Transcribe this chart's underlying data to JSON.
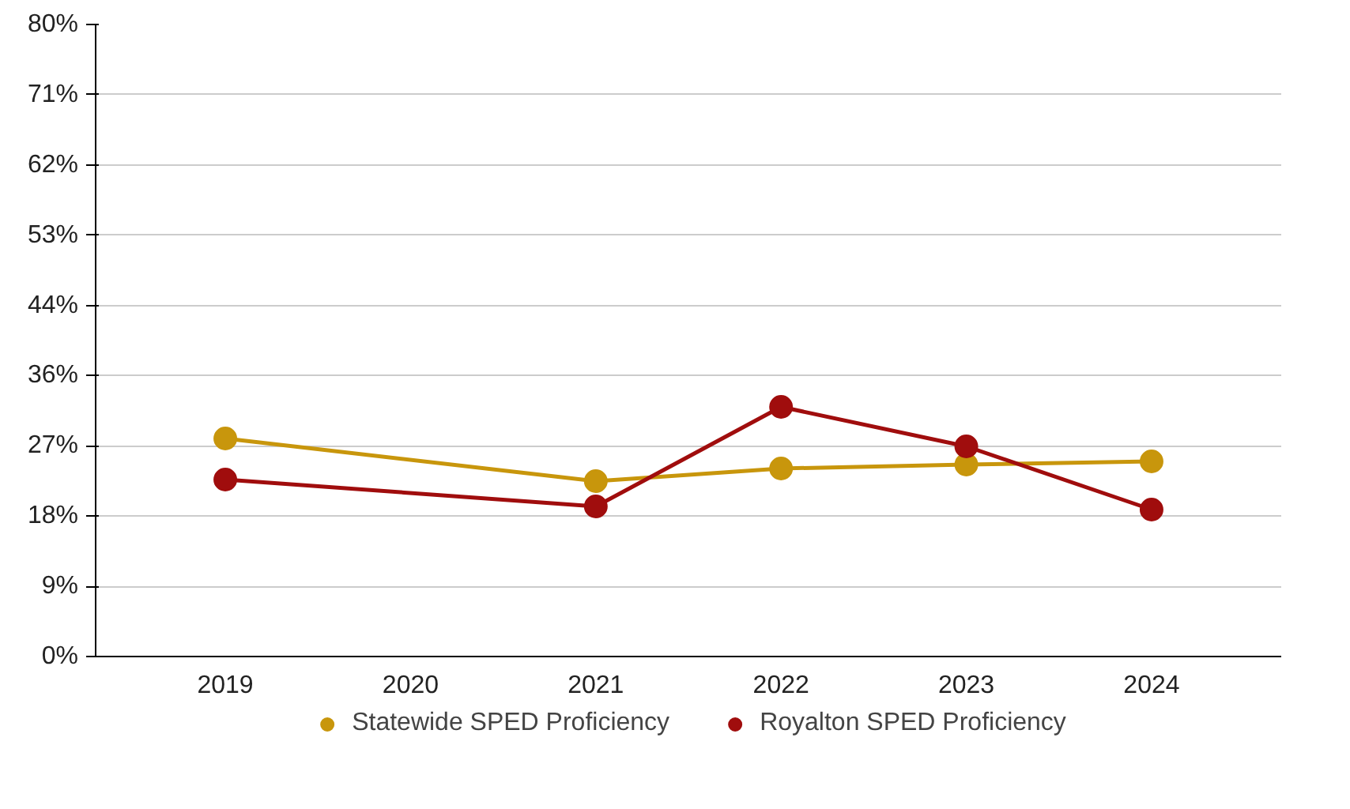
{
  "chart_data": {
    "type": "line",
    "categories": [
      "2019",
      "2020",
      "2021",
      "2022",
      "2023",
      "2024"
    ],
    "series": [
      {
        "name": "Statewide SPED Proficiency",
        "color": "#c8960c",
        "values": [
          27.6,
          null,
          22.2,
          23.8,
          24.3,
          24.7
        ]
      },
      {
        "name": "Royalton SPED Proficiency",
        "color": "#a00d0d",
        "values": [
          22.4,
          null,
          19.0,
          31.6,
          26.6,
          18.6
        ]
      }
    ],
    "ylim": [
      0,
      80
    ],
    "yticks": [
      {
        "value": 0,
        "label": "0%"
      },
      {
        "value": 8.89,
        "label": "9%"
      },
      {
        "value": 17.78,
        "label": "18%"
      },
      {
        "value": 26.67,
        "label": "27%"
      },
      {
        "value": 35.56,
        "label": "36%"
      },
      {
        "value": 44.44,
        "label": "44%"
      },
      {
        "value": 53.33,
        "label": "53%"
      },
      {
        "value": 62.22,
        "label": "62%"
      },
      {
        "value": 71.11,
        "label": "71%"
      },
      {
        "value": 80,
        "label": "80%"
      }
    ],
    "grid": "y",
    "legend": "bottom",
    "marker": "circle",
    "line_style": "solid"
  }
}
